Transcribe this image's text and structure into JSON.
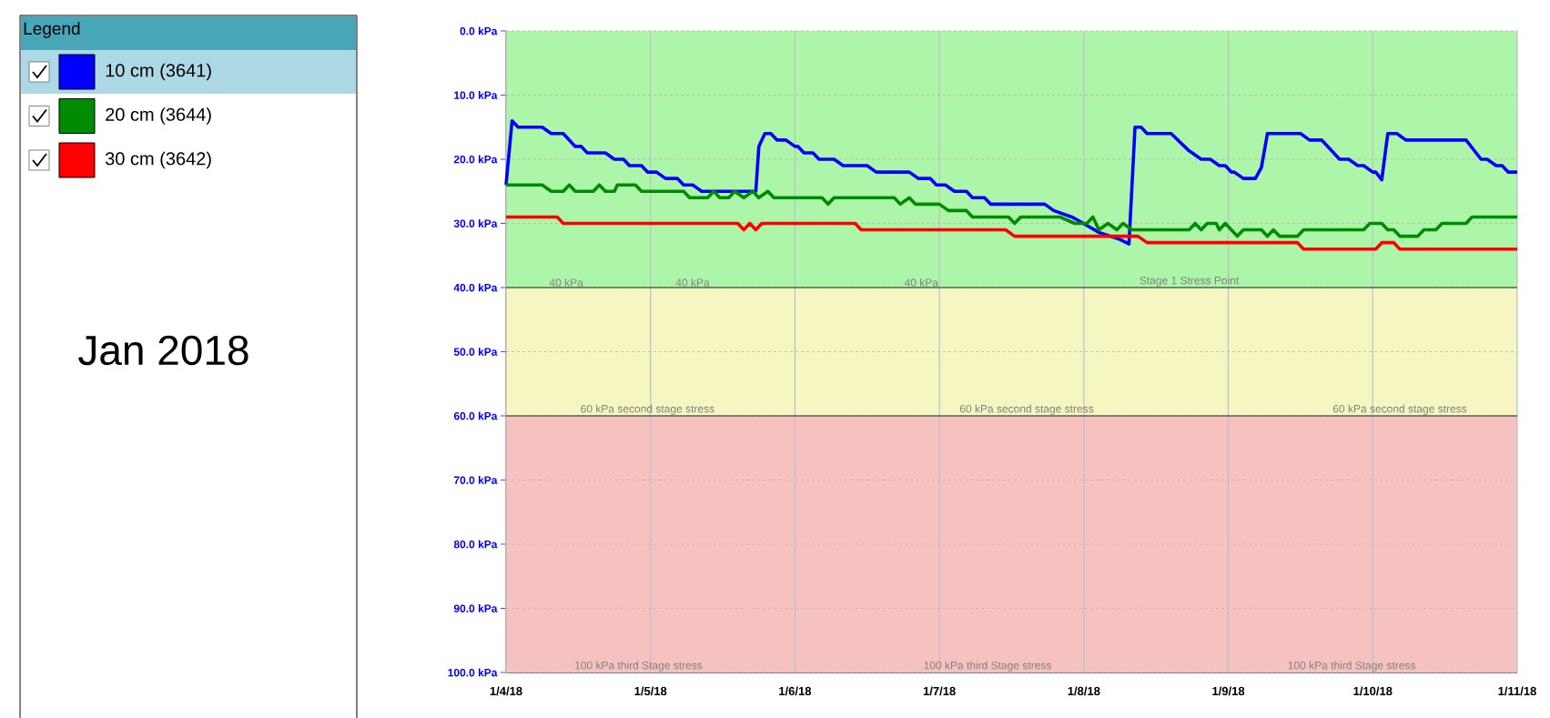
{
  "chart_data": {
    "type": "line",
    "title": "Jan 2018",
    "legend_title": "Legend",
    "legend": "left",
    "grid": true,
    "xlim": [
      "2018-01-04",
      "2018-01-11"
    ],
    "xticks": [
      {
        "value": "2018-01-04",
        "label": "1/4/18"
      },
      {
        "value": "2018-01-05",
        "label": "1/5/18"
      },
      {
        "value": "2018-01-06",
        "label": "1/6/18"
      },
      {
        "value": "2018-01-07",
        "label": "1/7/18"
      },
      {
        "value": "2018-01-08",
        "label": "1/8/18"
      },
      {
        "value": "2018-01-09",
        "label": "1/9/18"
      },
      {
        "value": "2018-01-10",
        "label": "1/10/18"
      },
      {
        "value": "2018-01-11",
        "label": "1/11/18"
      }
    ],
    "ylim": [
      100,
      0
    ],
    "yticks": [
      {
        "value": 0,
        "label": "0.0 kPa"
      },
      {
        "value": 10,
        "label": "10.0 kPa"
      },
      {
        "value": 20,
        "label": "20.0 kPa"
      },
      {
        "value": 30,
        "label": "30.0 kPa"
      },
      {
        "value": 40,
        "label": "40.0 kPa"
      },
      {
        "value": 50,
        "label": "50.0 kPa"
      },
      {
        "value": 60,
        "label": "60.0 kPa"
      },
      {
        "value": 70,
        "label": "70.0 kPa"
      },
      {
        "value": 80,
        "label": "80.0 kPa"
      },
      {
        "value": 90,
        "label": "90.0 kPa"
      },
      {
        "value": 100,
        "label": "100.0 kPa"
      }
    ],
    "bands": [
      {
        "axis": "y",
        "from": 0,
        "to": 40,
        "color": "#adf5a8"
      },
      {
        "axis": "y",
        "from": 40,
        "to": 60,
        "color": "#f6f6c2"
      },
      {
        "axis": "y",
        "from": 60,
        "to": 100,
        "color": "#f5c2c0"
      }
    ],
    "ref_lines": [
      {
        "axis": "y",
        "value": 40,
        "color": "#4f6a4f"
      },
      {
        "axis": "y",
        "value": 60,
        "color": "#6a5a50"
      }
    ],
    "annotations": [
      {
        "text": "40 kPa",
        "x": "2018-01-04T10:00",
        "y": 40
      },
      {
        "text": "40 kPa",
        "x": "2018-01-05T07:00",
        "y": 40
      },
      {
        "text": "40 kPa",
        "x": "2018-01-06T21:00",
        "y": 40
      },
      {
        "text": "Stage 1 Stress Point",
        "x": "2018-01-08T17:30",
        "y": 40
      },
      {
        "text": "60 kPa second stage stress",
        "x": "2018-01-04T23:30",
        "y": 60
      },
      {
        "text": "60 kPa second stage stress",
        "x": "2018-01-07T14:30",
        "y": 60
      },
      {
        "text": "60 kPa second stage stress",
        "x": "2018-01-10T04:30",
        "y": 60
      },
      {
        "text": "100 kPa third Stage stress",
        "x": "2018-01-04T22:00",
        "y": 100
      },
      {
        "text": "100 kPa third Stage stress",
        "x": "2018-01-07T08:00",
        "y": 100
      },
      {
        "text": "100 kPa third Stage stress",
        "x": "2018-01-09T20:30",
        "y": 100
      }
    ],
    "series": [
      {
        "name": "10 cm (3641)",
        "color": "#0000ff",
        "x": [
          "2018-01-04T00:00",
          "2018-01-04T01:00",
          "2018-01-04T02:00",
          "2018-01-04T06:00",
          "2018-01-04T07:30",
          "2018-01-04T09:30",
          "2018-01-04T11:30",
          "2018-01-04T12:30",
          "2018-01-04T13:30",
          "2018-01-04T16:30",
          "2018-01-04T18:00",
          "2018-01-04T19:30",
          "2018-01-04T20:30",
          "2018-01-04T22:30",
          "2018-01-04T23:30",
          "2018-01-05T01:00",
          "2018-01-05T02:30",
          "2018-01-05T04:30",
          "2018-01-05T05:30",
          "2018-01-05T07:00",
          "2018-01-05T08:30",
          "2018-01-05T17:30",
          "2018-01-05T18:00",
          "2018-01-05T19:00",
          "2018-01-05T20:00",
          "2018-01-05T21:00",
          "2018-01-05T22:30",
          "2018-01-06T00:00",
          "2018-01-06T00:30",
          "2018-01-06T01:30",
          "2018-01-06T03:00",
          "2018-01-06T04:00",
          "2018-01-06T06:30",
          "2018-01-06T08:00",
          "2018-01-06T12:00",
          "2018-01-06T13:30",
          "2018-01-06T19:00",
          "2018-01-06T20:30",
          "2018-01-06T22:30",
          "2018-01-06T23:30",
          "2018-01-07T01:00",
          "2018-01-07T02:30",
          "2018-01-07T04:30",
          "2018-01-07T05:30",
          "2018-01-07T07:30",
          "2018-01-07T08:30",
          "2018-01-07T17:30",
          "2018-01-07T19:00",
          "2018-01-07T22:00",
          "2018-01-07T23:00",
          "2018-01-08T02:30",
          "2018-01-08T06:00",
          "2018-01-08T07:30",
          "2018-01-08T08:30",
          "2018-01-08T09:30",
          "2018-01-08T10:30",
          "2018-01-08T14:30",
          "2018-01-08T17:30",
          "2018-01-08T18:00",
          "2018-01-08T19:30",
          "2018-01-08T21:00",
          "2018-01-08T22:30",
          "2018-01-08T23:30",
          "2018-01-09T00:30",
          "2018-01-09T01:00",
          "2018-01-09T02:30",
          "2018-01-09T04:30",
          "2018-01-09T05:30",
          "2018-01-09T06:30",
          "2018-01-09T12:00",
          "2018-01-09T13:30",
          "2018-01-09T15:30",
          "2018-01-09T18:30",
          "2018-01-09T20:00",
          "2018-01-09T21:30",
          "2018-01-09T22:30",
          "2018-01-10T00:00",
          "2018-01-10T00:30",
          "2018-01-10T01:30",
          "2018-01-10T02:30",
          "2018-01-10T04:00",
          "2018-01-10T05:30",
          "2018-01-10T15:30",
          "2018-01-10T18:00",
          "2018-01-10T19:00",
          "2018-01-10T20:30",
          "2018-01-10T21:30",
          "2018-01-10T22:30",
          "2018-01-11T00:00"
        ],
        "values": [
          24,
          14,
          15,
          15,
          16,
          16,
          18,
          18,
          19,
          19,
          20,
          20,
          21,
          21,
          22,
          22,
          23,
          23,
          24,
          24,
          25,
          25,
          18,
          16,
          16,
          17,
          17,
          18,
          18,
          19,
          19,
          20,
          20,
          21,
          21,
          22,
          22,
          23,
          23,
          24,
          24,
          25,
          25,
          26,
          26,
          27,
          27,
          28,
          29,
          29.5,
          31.4,
          32.5,
          33.2,
          15,
          15,
          16,
          16,
          18.7,
          19,
          20,
          20,
          21,
          21,
          22,
          22,
          23,
          23,
          21.3,
          16,
          16,
          17,
          17,
          20,
          20,
          21,
          21,
          22,
          22,
          23.2,
          16,
          16,
          17,
          17,
          20,
          20,
          21,
          21,
          22,
          22
        ]
      },
      {
        "name": "20 cm (3644)",
        "color": "#008c00",
        "x": [
          "2018-01-04T00:00",
          "2018-01-04T06:00",
          "2018-01-04T07:30",
          "2018-01-04T09:30",
          "2018-01-04T10:30",
          "2018-01-04T11:30",
          "2018-01-04T14:30",
          "2018-01-04T15:30",
          "2018-01-04T16:30",
          "2018-01-04T18:00",
          "2018-01-04T18:30",
          "2018-01-04T21:30",
          "2018-01-04T22:30",
          "2018-01-05T05:30",
          "2018-01-05T06:30",
          "2018-01-05T09:30",
          "2018-01-05T10:30",
          "2018-01-05T11:30",
          "2018-01-05T13:00",
          "2018-01-05T14:00",
          "2018-01-05T15:30",
          "2018-01-05T17:00",
          "2018-01-05T18:00",
          "2018-01-05T19:30",
          "2018-01-05T20:30",
          "2018-01-06T04:30",
          "2018-01-06T05:30",
          "2018-01-06T06:30",
          "2018-01-06T16:30",
          "2018-01-06T17:30",
          "2018-01-06T19:00",
          "2018-01-06T20:00",
          "2018-01-07T00:00",
          "2018-01-07T01:30",
          "2018-01-07T04:30",
          "2018-01-07T05:30",
          "2018-01-07T11:30",
          "2018-01-07T12:30",
          "2018-01-07T13:30",
          "2018-01-07T20:00",
          "2018-01-07T22:30",
          "2018-01-08T00:30",
          "2018-01-08T01:30",
          "2018-01-08T02:30",
          "2018-01-08T04:00",
          "2018-01-08T05:30",
          "2018-01-08T06:30",
          "2018-01-08T08:00",
          "2018-01-08T17:30",
          "2018-01-08T18:30",
          "2018-01-08T19:30",
          "2018-01-08T20:30",
          "2018-01-08T22:00",
          "2018-01-08T22:30",
          "2018-01-08T23:30",
          "2018-01-09T00:30",
          "2018-01-09T01:30",
          "2018-01-09T02:30",
          "2018-01-09T05:30",
          "2018-01-09T06:30",
          "2018-01-09T07:30",
          "2018-01-09T08:30",
          "2018-01-09T11:30",
          "2018-01-09T12:30",
          "2018-01-09T22:30",
          "2018-01-09T23:30",
          "2018-01-10T01:30",
          "2018-01-10T02:30",
          "2018-01-10T03:30",
          "2018-01-10T04:30",
          "2018-01-10T07:30",
          "2018-01-10T08:30",
          "2018-01-10T10:30",
          "2018-01-10T11:30",
          "2018-01-10T15:30",
          "2018-01-10T16:30",
          "2018-01-11T00:00"
        ],
        "values": [
          24,
          24,
          25,
          25,
          24,
          25,
          25,
          24,
          25,
          25,
          24,
          24,
          25,
          25,
          26,
          26,
          25,
          26,
          26,
          25,
          26,
          25,
          26,
          25,
          26,
          26,
          27,
          26,
          26,
          27,
          26,
          27,
          27,
          28,
          28,
          29,
          29,
          30,
          29,
          29,
          30,
          30,
          29,
          31,
          30,
          31,
          30,
          31,
          31,
          30,
          31,
          30,
          30,
          31,
          30,
          31,
          32,
          31,
          31,
          32,
          31,
          32,
          32,
          31,
          31,
          30,
          30,
          31,
          31,
          32,
          32,
          31,
          31,
          30,
          30,
          29,
          29
        ]
      },
      {
        "name": "30 cm (3642)",
        "color": "#ff0000",
        "x": [
          "2018-01-04T00:00",
          "2018-01-04T08:30",
          "2018-01-04T09:30",
          "2018-01-05T14:30",
          "2018-01-05T15:30",
          "2018-01-05T16:30",
          "2018-01-05T17:30",
          "2018-01-05T18:30",
          "2018-01-06T10:00",
          "2018-01-06T11:00",
          "2018-01-07T11:00",
          "2018-01-07T12:30",
          "2018-01-08T09:00",
          "2018-01-08T10:30",
          "2018-01-09T11:30",
          "2018-01-09T12:30",
          "2018-01-10T00:30",
          "2018-01-10T01:30",
          "2018-01-10T03:30",
          "2018-01-10T04:30",
          "2018-01-11T00:00"
        ],
        "values": [
          29,
          29,
          30,
          30,
          31,
          30,
          31,
          30,
          30,
          31,
          31,
          32,
          32,
          33,
          33,
          34,
          34,
          33,
          33,
          34,
          34
        ]
      }
    ]
  }
}
